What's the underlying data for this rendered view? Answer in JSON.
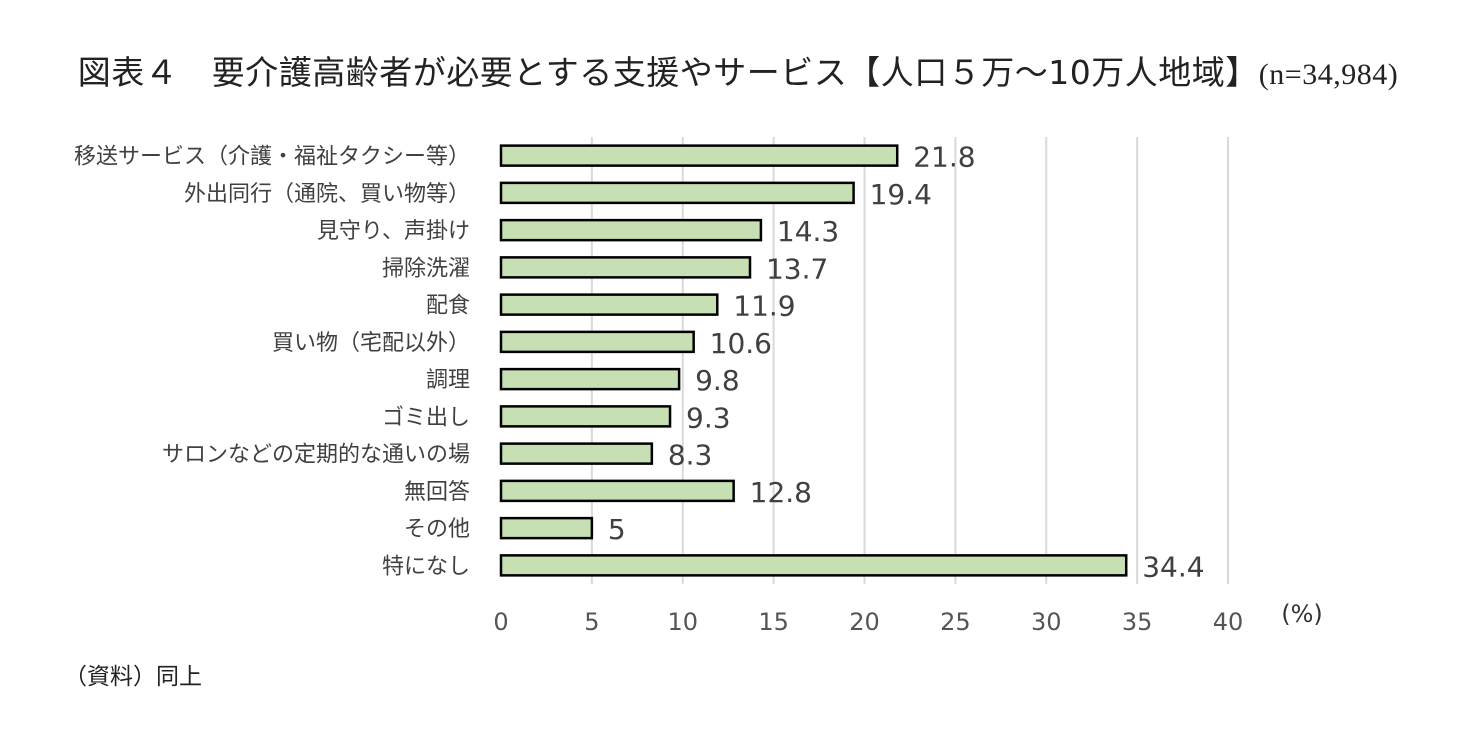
{
  "title": "図表４　要介護高齢者が必要とする支援やサービス【人口５万～10万人地域】",
  "title_n": "(n=34,984)",
  "source": "（資料）同上",
  "chart_data": {
    "type": "bar",
    "orientation": "horizontal",
    "title": "図表４　要介護高齢者が必要とする支援やサービス【人口５万～10万人地域】(n=34,984)",
    "categories": [
      "移送サービス（介護・福祉タクシー等）",
      "外出同行（通院、買い物等）",
      "見守り、声掛け",
      "掃除洗濯",
      "配食",
      "買い物（宅配以外）",
      "調理",
      "ゴミ出し",
      "サロンなどの定期的な通いの場",
      "無回答",
      "その他",
      "特になし"
    ],
    "values": [
      21.8,
      19.4,
      14.3,
      13.7,
      11.9,
      10.6,
      9.8,
      9.3,
      8.3,
      12.8,
      5,
      34.4
    ],
    "value_labels": [
      "21.8",
      "19.4",
      "14.3",
      "13.7",
      "11.9",
      "10.6",
      "9.8",
      "9.3",
      "8.3",
      "12.8",
      "5",
      "34.4"
    ],
    "xlim": [
      0,
      40
    ],
    "xticks": [
      "0",
      "5",
      "10",
      "15",
      "20",
      "25",
      "30",
      "35",
      "40"
    ],
    "xunit": "(%)",
    "grid": "vertical",
    "colors": {
      "bar_fill": "#c6e0b4",
      "bar_stroke": "#000000",
      "grid": "#d9d9d9"
    }
  }
}
